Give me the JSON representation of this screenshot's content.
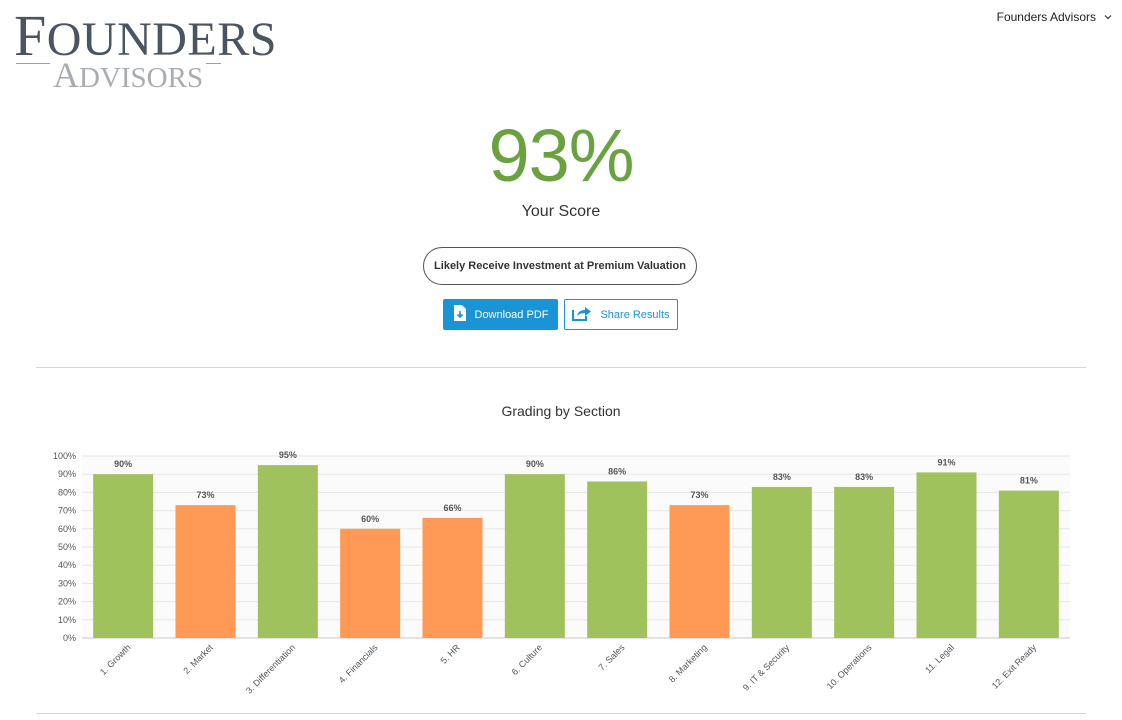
{
  "brand": {
    "logo_line1": "FOUNDERS",
    "logo_line2": "ADVISORS"
  },
  "account_menu": {
    "label": "Founders Advisors",
    "icon": "chevron-down-icon"
  },
  "score": {
    "value": "93%",
    "label": "Your Score"
  },
  "result": {
    "label": "Likely Receive Investment at Premium Valuation"
  },
  "actions": {
    "download_label": "Download PDF",
    "download_icon": "pdf-download-icon",
    "share_label": "Share Results",
    "share_icon": "share-icon"
  },
  "colors": {
    "score_green": "#6aa240",
    "bar_green": "#9fc25d",
    "bar_orange": "#ff9955",
    "button_blue": "#1a94d4"
  },
  "chart_data": {
    "type": "bar",
    "title": "Grading by Section",
    "xlabel": "",
    "ylabel": "",
    "ylim": [
      0,
      100
    ],
    "y_ticks": [
      "0%",
      "10%",
      "20%",
      "30%",
      "40%",
      "50%",
      "60%",
      "70%",
      "80%",
      "90%",
      "100%"
    ],
    "grid": true,
    "categories": [
      "1. Growth",
      "2. Market",
      "3. Differentiation",
      "4. Financials",
      "5. HR",
      "6. Culture",
      "7. Sales",
      "8. Marketing",
      "9. IT & Security",
      "10. Operations",
      "11. Legal",
      "12. Exit Ready"
    ],
    "values": [
      90,
      73,
      95,
      60,
      66,
      90,
      86,
      73,
      83,
      83,
      91,
      81
    ],
    "value_labels": [
      "90%",
      "73%",
      "95%",
      "60%",
      "66%",
      "90%",
      "86%",
      "73%",
      "83%",
      "83%",
      "91%",
      "81%"
    ],
    "bar_colors": [
      "green",
      "orange",
      "green",
      "orange",
      "orange",
      "green",
      "green",
      "orange",
      "green",
      "green",
      "green",
      "green"
    ]
  }
}
